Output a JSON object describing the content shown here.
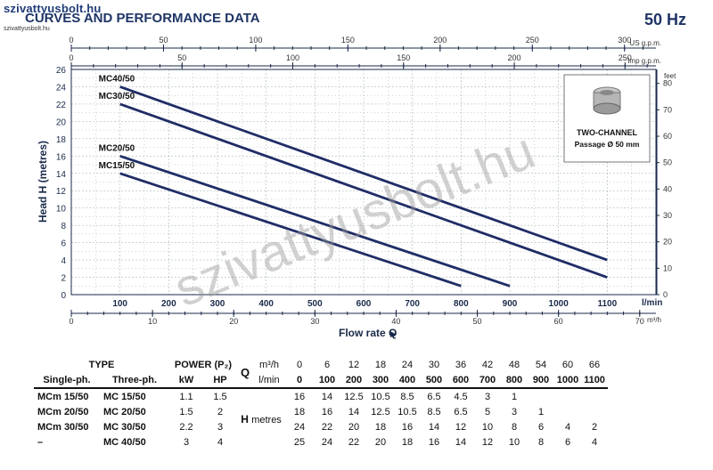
{
  "watermark": {
    "site": "szivattyusbolt.hu",
    "site_small": "szivattyusbolt.hu",
    "diagonal": "szivattyusbolt.hu"
  },
  "header": {
    "title": "CURVES AND PERFORMANCE DATA",
    "frequency": "50 Hz"
  },
  "inset": {
    "line1": "TWO-CHANNEL",
    "line2": "Passage Ø 50 mm"
  },
  "chart_data": {
    "type": "line",
    "ylabel": "Head H (metres)",
    "xlabel": "Flow rate Q",
    "x_unit": "l/min",
    "xlim": [
      0,
      1200
    ],
    "ylim": [
      0,
      26
    ],
    "x_ticks": [
      100,
      200,
      300,
      400,
      500,
      600,
      700,
      800,
      900,
      1000,
      1100
    ],
    "y_ticks": [
      0,
      2,
      4,
      6,
      8,
      10,
      12,
      14,
      16,
      18,
      20,
      22,
      24,
      26
    ],
    "feet_axis": {
      "unit": "feet",
      "ticks": [
        0,
        10,
        20,
        30,
        40,
        50,
        60,
        70,
        80
      ]
    },
    "us_gpm_axis": {
      "unit": "US g.p.m.",
      "ticks": [
        0,
        50,
        100,
        150,
        200,
        250,
        300
      ]
    },
    "imp_gpm_axis": {
      "unit": "Imp g.p.m.",
      "ticks": [
        0,
        50,
        100,
        150,
        200,
        250
      ]
    },
    "m3h_axis": {
      "unit": "m³/h",
      "ticks": [
        0,
        10,
        20,
        30,
        40,
        50,
        60,
        70
      ]
    },
    "series": [
      {
        "name": "MC40/50",
        "x": [
          100,
          1100
        ],
        "y": [
          24,
          4
        ]
      },
      {
        "name": "MC30/50",
        "x": [
          100,
          1100
        ],
        "y": [
          22,
          2
        ]
      },
      {
        "name": "MC20/50",
        "x": [
          100,
          900
        ],
        "y": [
          16,
          1
        ]
      },
      {
        "name": "MC15/50",
        "x": [
          100,
          800
        ],
        "y": [
          14,
          1
        ]
      }
    ]
  },
  "table": {
    "type_header": "TYPE",
    "power_header": "POWER (P₂)",
    "q_label": "Q",
    "q_unit_m3h": "m³/h",
    "q_unit_lmin": "l/min",
    "single_ph": "Single-ph.",
    "three_ph": "Three-ph.",
    "kw": "kW",
    "hp": "HP",
    "h_label": "H",
    "h_unit": "metres",
    "q_m3h": [
      "0",
      "6",
      "12",
      "18",
      "24",
      "30",
      "36",
      "42",
      "48",
      "54",
      "60",
      "66"
    ],
    "q_lmin": [
      "0",
      "100",
      "200",
      "300",
      "400",
      "500",
      "600",
      "700",
      "800",
      "900",
      "1000",
      "1100"
    ],
    "rows": [
      {
        "single": "MCm 15/50",
        "three": "MC 15/50",
        "kw": "1.1",
        "hp": "1.5",
        "h": [
          "16",
          "14",
          "12.5",
          "10.5",
          "8.5",
          "6.5",
          "4.5",
          "3",
          "1",
          "",
          "",
          ""
        ]
      },
      {
        "single": "MCm 20/50",
        "three": "MC 20/50",
        "kw": "1.5",
        "hp": "2",
        "h": [
          "18",
          "16",
          "14",
          "12.5",
          "10.5",
          "8.5",
          "6.5",
          "5",
          "3",
          "1",
          "",
          ""
        ]
      },
      {
        "single": "MCm 30/50",
        "three": "MC 30/50",
        "kw": "2.2",
        "hp": "3",
        "h": [
          "24",
          "22",
          "20",
          "18",
          "16",
          "14",
          "12",
          "10",
          "8",
          "6",
          "4",
          "2"
        ]
      },
      {
        "single": "–",
        "three": "MC 40/50",
        "kw": "3",
        "hp": "4",
        "h": [
          "25",
          "24",
          "22",
          "20",
          "18",
          "16",
          "14",
          "12",
          "10",
          "8",
          "6",
          "4"
        ]
      }
    ]
  }
}
